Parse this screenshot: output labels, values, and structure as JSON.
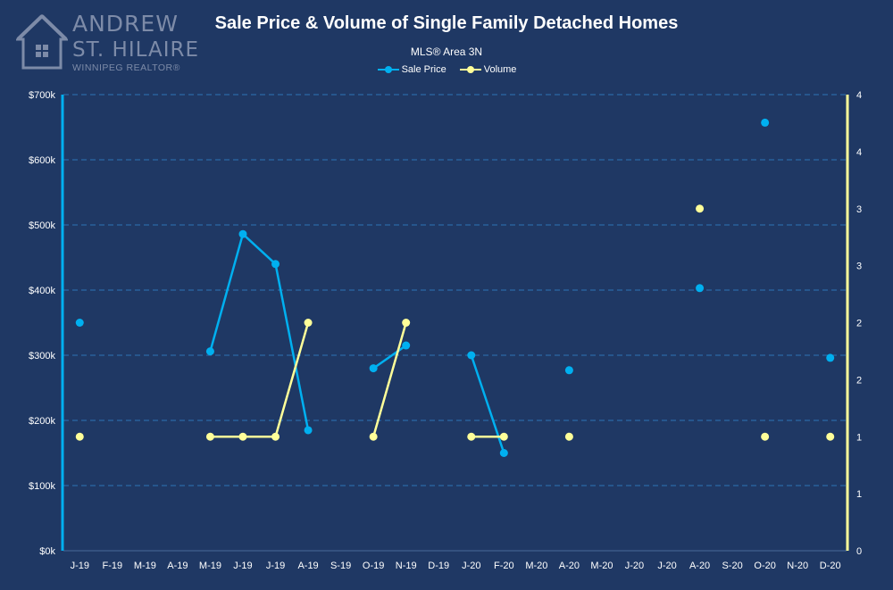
{
  "logo": {
    "line1": "ANDREW",
    "line2": "ST. HILAIRE",
    "line3": "WINNIPEG REALTOR®"
  },
  "colors": {
    "background": "#1f3864",
    "sale_price": "#00b0f0",
    "volume": "#ffff99",
    "grid": "#2e75b6"
  },
  "chart_data": {
    "type": "line",
    "title": "Sale Price & Volume of Single Family Detached Homes",
    "subtitle": "MLS® Area 3N",
    "categories": [
      "J-19",
      "F-19",
      "M-19",
      "A-19",
      "M-19",
      "J-19",
      "J-19",
      "A-19",
      "S-19",
      "O-19",
      "N-19",
      "D-19",
      "J-20",
      "F-20",
      "M-20",
      "A-20",
      "M-20",
      "J-20",
      "J-20",
      "A-20",
      "S-20",
      "O-20",
      "N-20",
      "D-20"
    ],
    "series": [
      {
        "name": "Sale Price",
        "axis": "left",
        "color": "#00b0f0",
        "values": [
          350000,
          null,
          null,
          null,
          306000,
          486000,
          440000,
          185000,
          null,
          280000,
          315000,
          null,
          300000,
          150000,
          null,
          277000,
          null,
          null,
          null,
          403000,
          null,
          657000,
          null,
          296000
        ]
      },
      {
        "name": "Volume",
        "axis": "right",
        "color": "#ffff99",
        "values": [
          1,
          null,
          null,
          null,
          1,
          1,
          1,
          2,
          null,
          1,
          2,
          null,
          1,
          1,
          null,
          1,
          null,
          null,
          null,
          3,
          null,
          1,
          null,
          1
        ]
      }
    ],
    "left_axis": {
      "ylim": [
        0,
        700000
      ],
      "ticks": [
        0,
        100000,
        200000,
        300000,
        400000,
        500000,
        600000,
        700000
      ],
      "tick_labels": [
        "$0k",
        "$100k",
        "$200k",
        "$300k",
        "$400k",
        "$500k",
        "$600k",
        "$700k"
      ]
    },
    "right_axis": {
      "ylim": [
        0,
        4
      ],
      "ticks": [
        0,
        0.5,
        1,
        1.5,
        2,
        2.5,
        3,
        3.5,
        4
      ],
      "tick_labels": [
        "0",
        "1",
        "1",
        "2",
        "2",
        "3",
        "3",
        "4",
        "4"
      ]
    },
    "grid": true,
    "legend": "top-center"
  }
}
